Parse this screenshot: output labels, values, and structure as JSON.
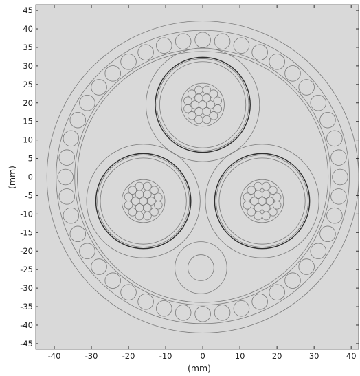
{
  "plot": {
    "xlim": [
      -45,
      42
    ],
    "ylim": [
      -46.5,
      46.5
    ],
    "x_ticks": [
      -40,
      -30,
      -20,
      -10,
      0,
      10,
      20,
      30,
      40
    ],
    "y_ticks": [
      45,
      40,
      35,
      30,
      25,
      20,
      15,
      10,
      5,
      0,
      -5,
      -10,
      -15,
      -20,
      -25,
      -30,
      -35,
      -40,
      -45
    ],
    "xlabel": "(mm)",
    "ylabel": "(mm)",
    "background_color": "#d9d9d9",
    "stroke_color": "#7a7a7a",
    "dark_stroke_color": "#2f2f2f"
  },
  "geometry": {
    "outer_sheath_radii": [
      42,
      39.5
    ],
    "armour_ring": {
      "radius": 37.0,
      "wire_radius": 2.1,
      "wire_count": 44
    },
    "inner_sheath_radii": [
      34.5,
      33.8
    ],
    "cores": [
      {
        "cx": 0,
        "cy": 19.5,
        "radii": [
          15.3,
          12.8,
          12.4,
          11.6,
          5.8
        ],
        "conductor": {
          "outer_ring_r": 5.9,
          "strand_r": 1.08
        }
      },
      {
        "cx": -16,
        "cy": -6.5,
        "radii": [
          15.3,
          12.8,
          12.4,
          11.6,
          5.8
        ],
        "conductor": {
          "outer_ring_r": 5.9,
          "strand_r": 1.08
        }
      },
      {
        "cx": 16,
        "cy": -6.5,
        "radii": [
          15.3,
          12.8,
          12.4,
          11.6,
          5.8
        ],
        "conductor": {
          "outer_ring_r": 5.9,
          "strand_r": 1.08
        }
      }
    ],
    "fibre_unit": {
      "cx": -0.5,
      "cy": -24.5,
      "radii": [
        7.0,
        3.5
      ]
    }
  }
}
